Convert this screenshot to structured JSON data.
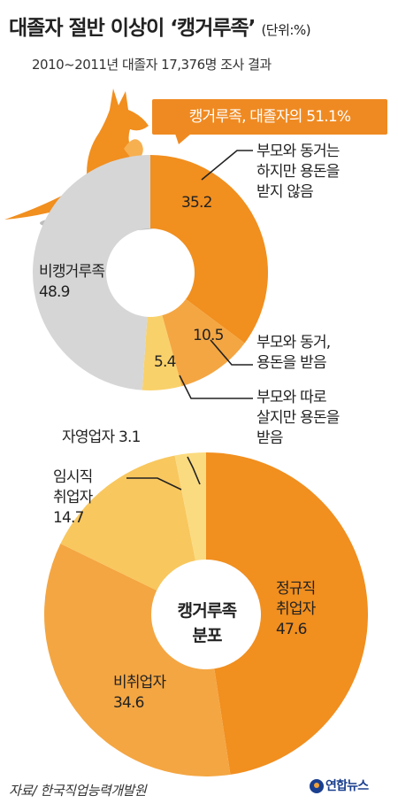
{
  "header": {
    "title": "대졸자 절반 이상이 ‘캥거루족’",
    "unit": "(단위:%)",
    "subtitle": "2010~2011년 대졸자 17,376명 조사 결과"
  },
  "callout": "캥거루족, 대졸자의 51.1%",
  "colors": {
    "orange": "#f18f1f",
    "orange_mid": "#f4a642",
    "orange_light": "#f7c75f",
    "yellow_light": "#fad56d",
    "gray": "#d6d6d6"
  },
  "chart_data": [
    {
      "type": "pie",
      "title": "",
      "slices": [
        {
          "label": "부모와 동거는 하지만 용돈을 받지 않음",
          "value": 35.2,
          "color": "#f18f1f"
        },
        {
          "label": "부모와 동거, 용돈을 받음",
          "value": 10.5,
          "color": "#f4a642"
        },
        {
          "label": "부모와 따로 살지만 용돈을 받음",
          "value": 5.4,
          "color": "#f9d16a"
        },
        {
          "label": "비캥거루족",
          "value": 48.9,
          "color": "#d6d6d6"
        }
      ]
    },
    {
      "type": "pie",
      "title": "캥거루족 분포",
      "slices": [
        {
          "label": "정규직 취업자",
          "value": 47.6,
          "color": "#f18f1f"
        },
        {
          "label": "비취업자",
          "value": 34.6,
          "color": "#f4a642"
        },
        {
          "label": "임시직 취업자",
          "value": 14.7,
          "color": "#f8c75e"
        },
        {
          "label": "자영업자",
          "value": 3.1,
          "color": "#fbdb80"
        }
      ]
    }
  ],
  "labels": {
    "top": {
      "s1_lines": [
        "부모와 동거는",
        "하지만 용돈을",
        "받지 않음"
      ],
      "s1_value": "35.2",
      "s2_lines": [
        "부모와 동거,",
        "용돈을 받음"
      ],
      "s2_value": "10.5",
      "s3_lines": [
        "부모와 따로",
        "살지만 용돈을",
        "받음"
      ],
      "s3_value": "5.4",
      "s4_name": "비캥거루족",
      "s4_value": "48.9"
    },
    "bottom": {
      "center_lines": [
        "캥거루족",
        "분포"
      ],
      "s1_lines": [
        "정규직",
        "취업자"
      ],
      "s1_value": "47.6",
      "s2_name": "비취업자",
      "s2_value": "34.6",
      "s3_lines": [
        "임시직",
        "취업자"
      ],
      "s3_value": "14.7",
      "s4_text": "자영업자 3.1"
    }
  },
  "source": "자료/ 한국직업능력개발원",
  "logo": "연합뉴스"
}
